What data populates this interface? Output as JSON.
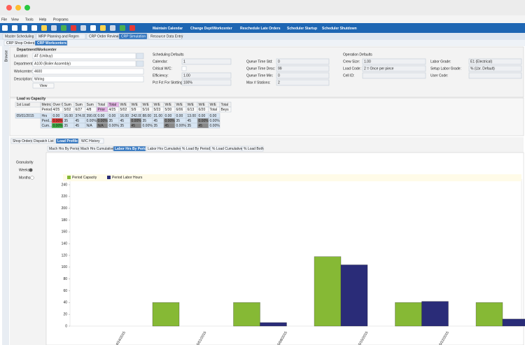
{
  "menu": [
    "File",
    "View",
    "Tools",
    "Help",
    "Programs"
  ],
  "toolbar_buttons": [
    "Maintain Calendar",
    "Change Dept/Workcenter",
    "Reschedule Late Orders",
    "Scheduler Startup",
    "Scheduler Shutdown"
  ],
  "module_tabs": [
    "Master Scheduling",
    "MRP Planning and Regen",
    "CRP Order Review",
    "CRP Simulation",
    "Resource Data Entry"
  ],
  "sub_tabs": [
    "CRP Shop Orders",
    "CRP Workcenters"
  ],
  "side_tab": "Browse",
  "department": {
    "title": "Department/Workcenter",
    "fields": [
      {
        "label": "Location:",
        "value": "AT (Unibuy)"
      },
      {
        "label": "Department:",
        "value": "A100 (Boiler Assembly)"
      },
      {
        "label": "Workcenter:",
        "value": "4600"
      },
      {
        "label": "Description:",
        "value": "Wiring"
      }
    ],
    "button": "View"
  },
  "scheduling": {
    "title": "Scheduling Defaults",
    "left": [
      {
        "label": "Calendar:",
        "value": "1"
      },
      {
        "label": "Critical W/C:"
      },
      {
        "label": "Efficiency:",
        "value": "1.00"
      },
      {
        "label": "Pct Fct For Slotting:",
        "value": "100%"
      }
    ],
    "right": [
      {
        "label": "Queue Time Std:",
        "value": "0"
      },
      {
        "label": "Queue Time Desc:",
        "value": "99"
      },
      {
        "label": "Queue Time Min:",
        "value": "0"
      },
      {
        "label": "Max # Stations:",
        "value": "2"
      }
    ]
  },
  "operation": {
    "title": "Operation Defaults",
    "left": [
      {
        "label": "Crew Size:",
        "value": "1.00"
      },
      {
        "label": "Load Code:",
        "value": "2 = Once per piece"
      },
      {
        "label": "Cell ID:"
      }
    ],
    "right": [
      {
        "label": "Labor Grade:",
        "value": "E1 (Electrical)"
      },
      {
        "label": "Setup Labor Grade:",
        "value": "% (Lbr. Default)"
      },
      {
        "label": "User Code:"
      }
    ]
  },
  "load": {
    "title": "Load vs Capacity",
    "header1": [
      "1st Load",
      "Metric",
      "Over Cap",
      "Sum",
      "Sum",
      "Sum",
      "Total",
      "Total",
      "W/E",
      "W/E",
      "W/E",
      "W/E",
      "W/E",
      "W/E",
      "W/E",
      "W/E",
      "W/E",
      "Total"
    ],
    "header2": [
      "Periods",
      "4/25",
      "5/02",
      "6/27",
      "4/8",
      "Prior",
      "4/25",
      "5/02",
      "5/9",
      "5/16",
      "5/23",
      "5/30",
      "6/06",
      "6/13",
      "6/20",
      "Total",
      "Beys"
    ],
    "rows": [
      [
        "05/01/2015",
        "Hrs",
        "0.00",
        "16.00",
        "374.00",
        "390.00",
        "0.00",
        "0.00",
        "16.00",
        "242.00",
        "88.00",
        "31.00",
        "0.00",
        "0.00",
        "13.00",
        "0.00",
        "0.00"
      ],
      [
        "Perd...",
        "0.00%",
        "35",
        "45",
        "0.00%",
        "0.00%",
        "35",
        "45",
        "0.00%",
        "35",
        "45",
        "0.00%",
        "35",
        "45",
        "0.00%",
        "0.00%"
      ],
      [
        "Cum...",
        "0.00%",
        "35",
        "45",
        "N/A",
        "N/A",
        "0.00%",
        "35",
        "45",
        "0.00%",
        "35",
        "45",
        "0.00%",
        "35",
        "45",
        "0.00%"
      ]
    ]
  },
  "bottom_tabs": [
    "Shop Orders",
    "Dispatch List",
    "Load Profile",
    "W/C History"
  ],
  "profile_tabs": [
    "Mach Hrs By Period",
    "Mach Hrs Cumulative",
    "Labor Hrs By Period",
    "Labor Hrs Cumulative",
    "% Load By Period",
    "% Load Cumulative",
    "% Load Both"
  ],
  "granularity": {
    "label": "Granularity",
    "options": [
      "Weeks",
      "Months"
    ]
  },
  "chart_data": {
    "type": "bar",
    "categories": [
      "04/24/2015",
      "05/01/2015",
      "05/08/2015",
      "05/15/2015",
      "05/22/2015"
    ],
    "series": [
      {
        "name": "Period Capacity",
        "color": "#86b935",
        "values": [
          40,
          40,
          118,
          40,
          40
        ]
      },
      {
        "name": "Period Labor Hours",
        "color": "#2a2c78",
        "values": [
          0,
          6,
          104,
          42,
          12
        ]
      }
    ],
    "ylim": [
      0,
      240
    ],
    "yticks": [
      0,
      20,
      40,
      60,
      80,
      100,
      120,
      140,
      160,
      180,
      200,
      220,
      240
    ]
  }
}
